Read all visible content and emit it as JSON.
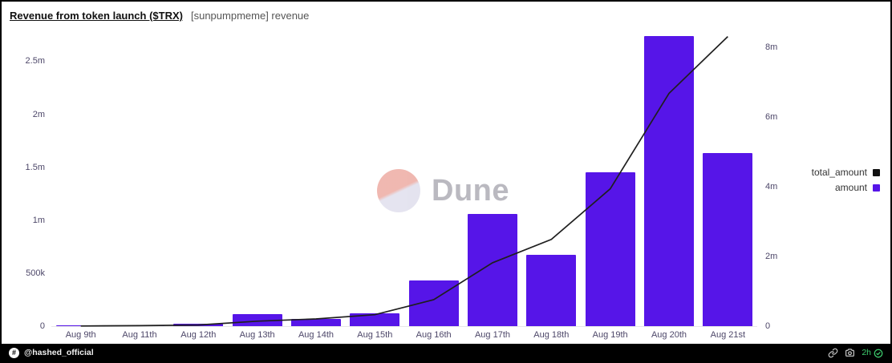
{
  "header": {
    "title": "Revenue from token launch ($TRX)",
    "subtitle": "[sunpumpmeme] revenue"
  },
  "chart_data": {
    "type": "bar",
    "title": "Revenue from token launch ($TRX)",
    "categories": [
      "Aug 9th",
      "Aug 11th",
      "Aug 12th",
      "Aug 13th",
      "Aug 14th",
      "Aug 15th",
      "Aug 16th",
      "Aug 17th",
      "Aug 18th",
      "Aug 19th",
      "Aug 20th",
      "Aug 21st"
    ],
    "series": [
      {
        "name": "amount",
        "type": "bar",
        "axis": "left",
        "color": "#5615e8",
        "values": [
          5000,
          8000,
          20000,
          110000,
          65000,
          120000,
          430000,
          1060000,
          670000,
          1450000,
          2740000,
          1630000
        ]
      },
      {
        "name": "total_amount",
        "type": "line",
        "axis": "right",
        "color": "#1f1f1f",
        "values": [
          5000,
          13000,
          33000,
          143000,
          208000,
          328000,
          758000,
          1818000,
          2488000,
          3938000,
          6678000,
          8308000
        ]
      }
    ],
    "left_axis": {
      "ticks": [
        "0",
        "500k",
        "1m",
        "1.5m",
        "2m",
        "2.5m"
      ],
      "tick_values": [
        0,
        500000,
        1000000,
        1500000,
        2000000,
        2500000
      ],
      "max": 2760000
    },
    "right_axis": {
      "ticks": [
        "0",
        "2m",
        "4m",
        "6m",
        "8m"
      ],
      "tick_values": [
        0,
        2000000,
        4000000,
        6000000,
        8000000
      ],
      "max": 8390000
    },
    "legend": [
      {
        "label": "total_amount",
        "color": "#111111"
      },
      {
        "label": "amount",
        "color": "#5615e8"
      }
    ],
    "legend_position": "right",
    "grid": false
  },
  "watermark": {
    "text": "Dune",
    "logo_icon": "dune-logo-icon"
  },
  "footer": {
    "handle": "@hashed_official",
    "avatar_glyph": "#",
    "time": "2h",
    "icons": [
      "link-icon",
      "camera-icon",
      "check-circle-icon"
    ]
  },
  "colors": {
    "bar": "#5615e8",
    "line": "#1f1f1f",
    "green": "#3ecf6f",
    "axis_text": "#4d4769"
  }
}
